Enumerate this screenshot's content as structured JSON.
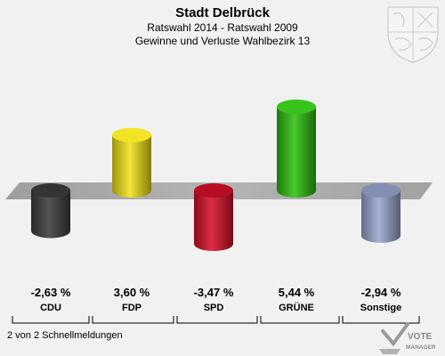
{
  "header": {
    "title": "Stadt Delbrück",
    "subtitle1": "Ratswahl 2014 - Ratswahl 2009",
    "subtitle2": "Gewinne und Verluste Wahlbezirk 13"
  },
  "footer": {
    "note": "2 von 2 Schnellmeldungen",
    "logo_text": "VOTE MANAGER"
  },
  "chart_data": {
    "type": "bar",
    "categories": [
      "CDU",
      "FDP",
      "SPD",
      "GRÜNE",
      "Sonstige"
    ],
    "values": [
      -2.63,
      3.6,
      -3.47,
      5.44,
      -2.94
    ],
    "value_labels": [
      "-2,63 %",
      "3,60 %",
      "-3,47 %",
      "5,44 %",
      "-2,94 %"
    ],
    "colors": [
      "#3d3d3d",
      "#f2e21a",
      "#d8112a",
      "#2ec010",
      "#9aa8d0"
    ],
    "title": "Stadt Delbrück",
    "ylim": [
      -6,
      6
    ],
    "grid": false,
    "legend": "none"
  }
}
